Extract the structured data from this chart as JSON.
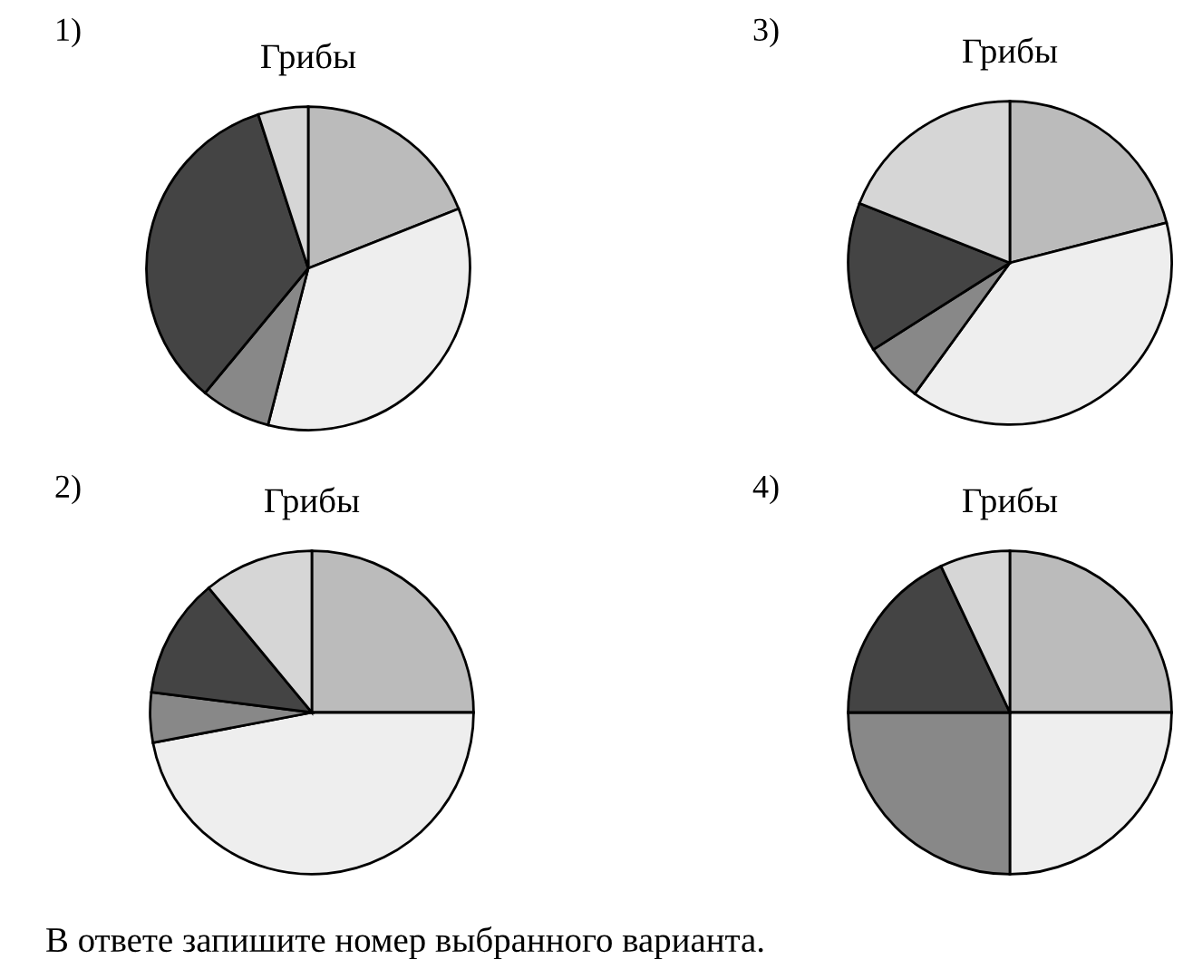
{
  "chart_data": [
    {
      "type": "pie",
      "title": "Грибы",
      "categories": [
        null,
        null,
        null,
        null,
        null
      ],
      "values": [
        19,
        35,
        7,
        34,
        5
      ],
      "colors": [
        "#bbbbbb",
        "#eeeeee",
        "#888888",
        "#444444",
        "#d6d6d6"
      ],
      "annotations": [
        "1)"
      ]
    },
    {
      "type": "pie",
      "title": "Грибы",
      "categories": [
        null,
        null,
        null,
        null,
        null
      ],
      "values": [
        21,
        39,
        6,
        15,
        19
      ],
      "colors": [
        "#bbbbbb",
        "#eeeeee",
        "#888888",
        "#444444",
        "#d6d6d6"
      ],
      "annotations": [
        "3)"
      ]
    },
    {
      "type": "pie",
      "title": "Грибы",
      "categories": [
        null,
        null,
        null,
        null,
        null
      ],
      "values": [
        25,
        47,
        5,
        12,
        11
      ],
      "colors": [
        "#bbbbbb",
        "#eeeeee",
        "#888888",
        "#444444",
        "#d6d6d6"
      ],
      "annotations": [
        "2)"
      ]
    },
    {
      "type": "pie",
      "title": "Грибы",
      "categories": [
        null,
        null,
        null,
        null,
        null
      ],
      "values": [
        25,
        25,
        25,
        18,
        7
      ],
      "colors": [
        "#bbbbbb",
        "#eeeeee",
        "#888888",
        "#444444",
        "#d6d6d6"
      ],
      "annotations": [
        "4)",
        "В ответе запишите номер выбранного варианта."
      ]
    }
  ]
}
